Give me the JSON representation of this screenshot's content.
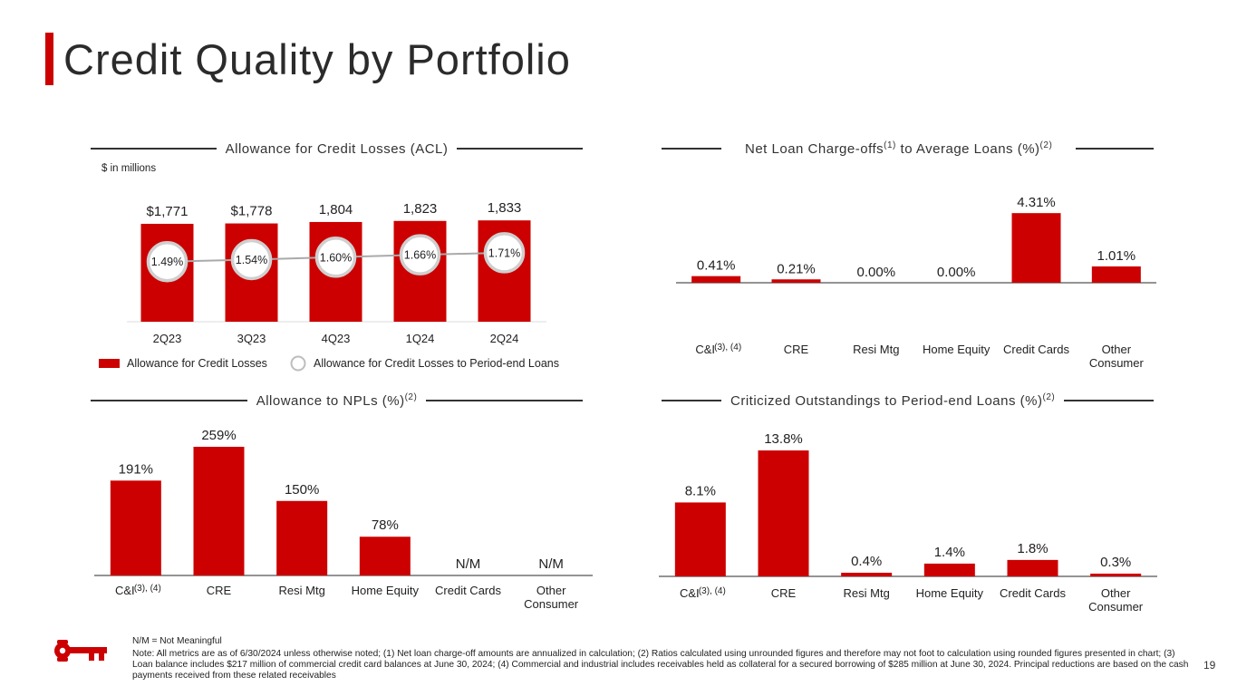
{
  "title": "Credit Quality by Portfolio",
  "colors": {
    "accent": "#cc0000",
    "line": "#aaaaaa",
    "text": "#222222"
  },
  "acl": {
    "heading": "Allowance for Credit Losses (ACL)",
    "units": "$ in millions",
    "legend_bars": "Allowance for Credit Losses",
    "legend_line": "Allowance for Credit Losses to Period-end Loans",
    "legend_bar_icon": "red-square-icon",
    "legend_line_icon": "circle-outline-icon"
  },
  "nco": {
    "heading_pre": "Net Loan Charge-offs",
    "heading_sup1": "(1)",
    "heading_mid": " to Average Loans (%)",
    "heading_sup2": "(2)"
  },
  "npl": {
    "heading": "Allowance to NPLs (%)",
    "heading_sup": "(2)"
  },
  "crit": {
    "heading": "Criticized Outstandings to Period-end Loans (%)",
    "heading_sup": "(2)"
  },
  "chart_data": [
    {
      "id": "acl",
      "type": "bar",
      "title": "Allowance for Credit Losses (ACL)",
      "categories": [
        "2Q23",
        "3Q23",
        "4Q23",
        "1Q24",
        "2Q24"
      ],
      "series": [
        {
          "name": "Allowance for Credit Losses",
          "values": [
            1771,
            1778,
            1804,
            1823,
            1833
          ],
          "labels": [
            "$1,771",
            "$1,778",
            "1,804",
            "1,823",
            "1,833"
          ]
        },
        {
          "name": "Allowance for Credit Losses to Period-end Loans",
          "kind": "line",
          "values": [
            1.49,
            1.54,
            1.6,
            1.66,
            1.71
          ],
          "labels": [
            "1.49%",
            "1.54%",
            "1.60%",
            "1.66%",
            "1.71%"
          ]
        }
      ],
      "ylim": [
        0,
        2000
      ],
      "ylim_line": [
        0,
        10
      ]
    },
    {
      "id": "nco",
      "type": "bar",
      "title": "Net Loan Charge-offs(1) to Average Loans (%)(2)",
      "categories": [
        "C&I",
        "CRE",
        "Resi Mtg",
        "Home Equity",
        "Credit Cards",
        "Other Consumer"
      ],
      "category_notes": [
        "(3), (4)",
        "",
        "",
        "",
        "",
        ""
      ],
      "values": [
        0.41,
        0.21,
        0.0,
        0.0,
        4.31,
        1.01
      ],
      "labels": [
        "0.41%",
        "0.21%",
        "0.00%",
        "0.00%",
        "4.31%",
        "1.01%"
      ],
      "ylim": [
        0,
        4.6
      ]
    },
    {
      "id": "npl",
      "type": "bar",
      "title": "Allowance to NPLs (%)(2)",
      "categories": [
        "C&I",
        "CRE",
        "Resi Mtg",
        "Home Equity",
        "Credit Cards",
        "Other Consumer"
      ],
      "category_notes": [
        "(3), (4)",
        "",
        "",
        "",
        "",
        ""
      ],
      "values": [
        191,
        259,
        150,
        78,
        null,
        null
      ],
      "labels": [
        "191%",
        "259%",
        "150%",
        "78%",
        "N/M",
        "N/M"
      ],
      "ylim": [
        0,
        270
      ]
    },
    {
      "id": "crit",
      "type": "bar",
      "title": "Criticized Outstandings to Period-end Loans (%)(2)",
      "categories": [
        "C&I",
        "CRE",
        "Resi Mtg",
        "Home Equity",
        "Credit Cards",
        "Other Consumer"
      ],
      "category_notes": [
        "(3), (4)",
        "",
        "",
        "",
        "",
        ""
      ],
      "values": [
        8.1,
        13.8,
        0.4,
        1.4,
        1.8,
        0.3
      ],
      "labels": [
        "8.1%",
        "13.8%",
        "0.4%",
        "1.4%",
        "1.8%",
        "0.3%"
      ],
      "ylim": [
        0,
        14.5
      ]
    }
  ],
  "footnote_nm": "N/M = Not Meaningful",
  "footnote_note": "Note: All metrics are as of 6/30/2024 unless otherwise noted; (1) Net loan charge-off amounts are annualized in calculation; (2) Ratios calculated using unrounded figures and therefore may not foot to calculation using rounded figures presented in chart; (3) Loan balance includes $217 million of commercial credit card balances at June 30, 2024; (4) Commercial and industrial includes receivables held as collateral for a secured borrowing of $285 million at June 30, 2024. Principal reductions are based on the cash payments received from these related receivables",
  "page_number": "19",
  "logo_icon": "key-logo-icon"
}
